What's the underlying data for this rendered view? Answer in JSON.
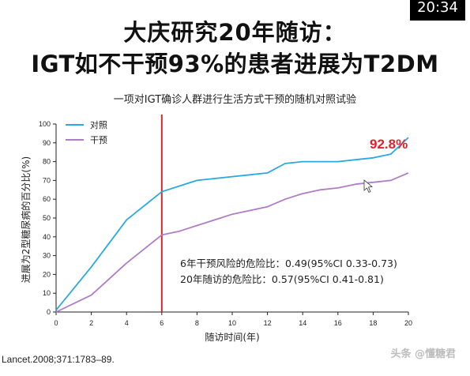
{
  "header": {
    "title_line1": "大庆研究20年随访：",
    "title_line2": "IGT如不干预93%的患者进展为T2DM",
    "subtitle": "一项对IGT确诊人群进行生活方式干预的随机对照试验",
    "time_badge": "20:34"
  },
  "citation": "Lancet.2008;371:1783–89.",
  "watermark": "头条 @懂糖君",
  "colors": {
    "control": "#2aa9e0",
    "intervention": "#b07cc6",
    "vline": "#e0202a",
    "highlight": "#e0202a"
  },
  "chart_data": {
    "type": "line",
    "title": "",
    "xlabel": "随访时间(年)",
    "ylabel": "进展为2型糖尿病的百分比(%)",
    "xlim": [
      0,
      20
    ],
    "ylim": [
      0,
      100
    ],
    "x_ticks": [
      0,
      2,
      4,
      6,
      8,
      10,
      12,
      14,
      16,
      18,
      20
    ],
    "y_ticks": [
      0,
      10,
      20,
      30,
      40,
      50,
      60,
      70,
      80,
      90,
      100
    ],
    "grid": false,
    "legend_position": "top-left",
    "series": [
      {
        "name": "对照",
        "color": "#2aa9e0",
        "x": [
          0,
          2,
          4,
          6,
          7,
          8,
          9,
          10,
          11,
          12,
          13,
          14,
          15,
          16,
          17,
          18,
          19,
          20
        ],
        "y": [
          1,
          24,
          49,
          64,
          67,
          70,
          71,
          72,
          73,
          74,
          79,
          80,
          80,
          80,
          81,
          82,
          84,
          92.8
        ]
      },
      {
        "name": "干预",
        "color": "#b07cc6",
        "x": [
          0,
          2,
          4,
          6,
          7,
          8,
          9,
          10,
          11,
          12,
          13,
          14,
          15,
          16,
          17,
          18,
          19,
          20
        ],
        "y": [
          0,
          9,
          26,
          41,
          43,
          46,
          49,
          52,
          54,
          56,
          60,
          63,
          65,
          66,
          68,
          69,
          70,
          74
        ]
      }
    ],
    "vertical_line_x": 6,
    "highlight_label": "92.8%",
    "annotations": [
      "6年干预风险的危险比：0.49(95%CI 0.33-0.73)",
      "20年随访的危险比：0.57(95%CI 0.41-0.81)"
    ]
  }
}
